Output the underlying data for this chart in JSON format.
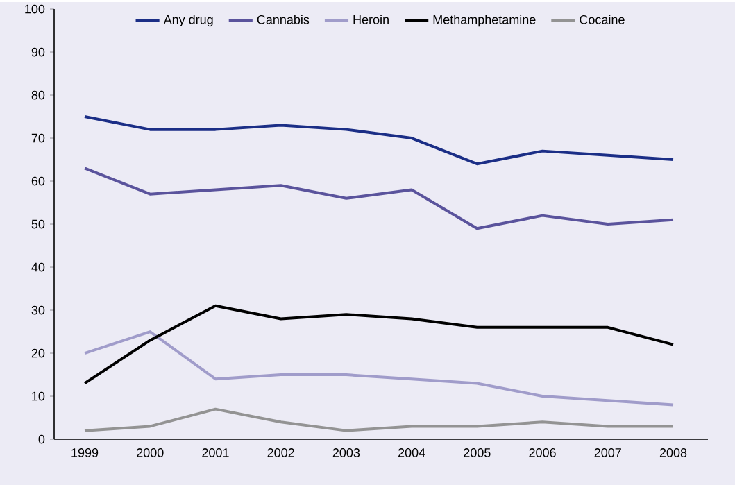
{
  "chart_data": {
    "type": "line",
    "categories": [
      "1999",
      "2000",
      "2001",
      "2002",
      "2003",
      "2004",
      "2005",
      "2006",
      "2007",
      "2008"
    ],
    "series": [
      {
        "name": "Any drug",
        "color": "#1b2e86",
        "values": [
          75,
          72,
          72,
          73,
          72,
          70,
          64,
          67,
          66,
          65
        ]
      },
      {
        "name": "Cannabis",
        "color": "#5a539c",
        "values": [
          63,
          57,
          58,
          59,
          56,
          58,
          49,
          52,
          50,
          51
        ]
      },
      {
        "name": "Heroin",
        "color": "#a09cca",
        "values": [
          20,
          25,
          14,
          15,
          15,
          14,
          13,
          10,
          9,
          8
        ]
      },
      {
        "name": "Methamphetamine",
        "color": "#000000",
        "values": [
          13,
          23,
          31,
          28,
          29,
          28,
          26,
          26,
          26,
          22
        ]
      },
      {
        "name": "Cocaine",
        "color": "#939393",
        "values": [
          2,
          3,
          7,
          4,
          2,
          3,
          3,
          4,
          3,
          3
        ]
      }
    ],
    "ylim": [
      0,
      100
    ],
    "yticks": [
      0,
      10,
      20,
      30,
      40,
      50,
      60,
      70,
      80,
      90,
      100
    ],
    "grid": false,
    "legend": "top",
    "marker": "none",
    "line_style": "solid"
  }
}
